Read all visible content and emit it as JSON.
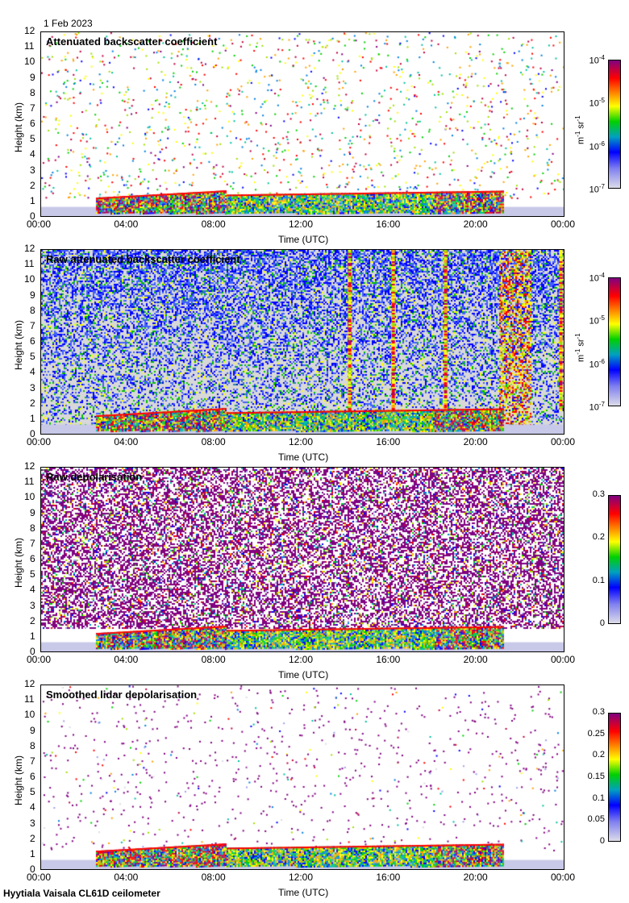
{
  "date": "1 Feb 2023",
  "footer": "Hyytiala Vaisala CL61D ceilometer",
  "chart_data": [
    {
      "type": "heatmap",
      "title": "Attenuated backscatter coefficient",
      "xlabel": "Time (UTC)",
      "ylabel": "Height (km)",
      "xticks": [
        "00:00",
        "04:00",
        "08:00",
        "12:00",
        "16:00",
        "20:00",
        "00:00"
      ],
      "yticks": [
        "0",
        "1",
        "2",
        "3",
        "4",
        "5",
        "6",
        "7",
        "8",
        "9",
        "10",
        "11",
        "12"
      ],
      "ylim": [
        0,
        12
      ],
      "xlim": [
        0,
        24
      ],
      "colorbar": {
        "scale": "log",
        "ticks": [
          "10-7",
          "10-6",
          "10-5",
          "10-4"
        ],
        "tick_values": [
          1e-07,
          1e-06,
          1e-05,
          0.0001
        ],
        "unit": "m-1 sr-1"
      },
      "pattern": "sparse"
    },
    {
      "type": "heatmap",
      "title": "Raw attenuated backscatter coefficient",
      "xlabel": "Time (UTC)",
      "ylabel": "Height (km)",
      "xticks": [
        "00:00",
        "04:00",
        "08:00",
        "12:00",
        "16:00",
        "20:00",
        "00:00"
      ],
      "yticks": [
        "0",
        "1",
        "2",
        "3",
        "4",
        "5",
        "6",
        "7",
        "8",
        "9",
        "10",
        "11",
        "12"
      ],
      "ylim": [
        0,
        12
      ],
      "xlim": [
        0,
        24
      ],
      "colorbar": {
        "scale": "log",
        "ticks": [
          "10-7",
          "10-6",
          "10-5",
          "10-4"
        ],
        "tick_values": [
          1e-07,
          1e-06,
          1e-05,
          0.0001
        ],
        "unit": "m-1 sr-1"
      },
      "pattern": "dense-blue"
    },
    {
      "type": "heatmap",
      "title": "Raw depolarisation",
      "xlabel": "Time (UTC)",
      "ylabel": "Height (km)",
      "xticks": [
        "00:00",
        "04:00",
        "08:00",
        "12:00",
        "16:00",
        "20:00",
        "00:00"
      ],
      "yticks": [
        "0",
        "1",
        "2",
        "3",
        "4",
        "5",
        "6",
        "7",
        "8",
        "9",
        "10",
        "11",
        "12"
      ],
      "ylim": [
        0,
        12
      ],
      "xlim": [
        0,
        24
      ],
      "colorbar": {
        "scale": "linear",
        "ticks": [
          "0",
          "0.1",
          "0.2",
          "0.3"
        ],
        "tick_values": [
          0,
          0.1,
          0.2,
          0.3
        ],
        "unit": ""
      },
      "pattern": "dense-purple"
    },
    {
      "type": "heatmap",
      "title": "Smoothed lidar depolarisation",
      "xlabel": "Time (UTC)",
      "ylabel": "Height (km)",
      "xticks": [
        "00:00",
        "04:00",
        "08:00",
        "12:00",
        "16:00",
        "20:00",
        "00:00"
      ],
      "yticks": [
        "0",
        "1",
        "2",
        "3",
        "4",
        "5",
        "6",
        "7",
        "8",
        "9",
        "10",
        "11",
        "12"
      ],
      "ylim": [
        0,
        12
      ],
      "xlim": [
        0,
        24
      ],
      "colorbar": {
        "scale": "linear",
        "ticks": [
          "0",
          "0.05",
          "0.1",
          "0.15",
          "0.2",
          "0.25",
          "0.3"
        ],
        "tick_values": [
          0,
          0.05,
          0.1,
          0.15,
          0.2,
          0.25,
          0.3
        ],
        "unit": ""
      },
      "pattern": "sparse-purple"
    }
  ],
  "cloud_layer": {
    "start_h": 2.5,
    "end_h": 21.2,
    "height_km": [
      0.8,
      1.6
    ]
  }
}
